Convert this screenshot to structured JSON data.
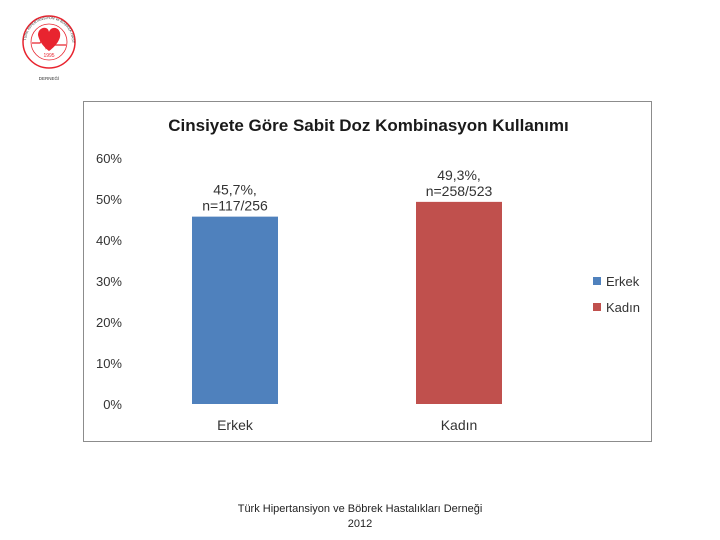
{
  "logo": {
    "ring_text_top": "TÜRK HİPERTANSİYON ve BÖBREK HASTALIKLARI",
    "ring_text_bottom": "DERNEĞİ",
    "year": "1995",
    "color": "#e8242f"
  },
  "chart_data": {
    "type": "bar",
    "title": "Cinsiyete Göre Sabit Doz Kombinasyon Kullanımı",
    "categories": [
      "Erkek",
      "Kadın"
    ],
    "values": [
      45.7,
      49.3
    ],
    "value_labels": [
      [
        "45,7%,",
        "n=117/256"
      ],
      [
        "49,3%,",
        "n=258/523"
      ]
    ],
    "colors": [
      "#4f81bd",
      "#c0504d"
    ],
    "ylim": [
      0,
      60
    ],
    "yticks": [
      "0%",
      "10%",
      "20%",
      "30%",
      "40%",
      "50%",
      "60%"
    ],
    "legend": [
      "Erkek",
      "Kadın"
    ],
    "legend_position": "right"
  },
  "footer": {
    "line1": "Türk Hipertansiyon ve Böbrek Hastalıkları Derneği",
    "line2": "2012"
  }
}
